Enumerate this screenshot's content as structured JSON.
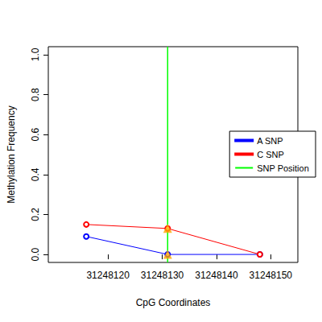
{
  "chart_data": {
    "type": "line",
    "x_label": "CpG Coordinates",
    "y_label": "Methylation Frequency",
    "x": [
      31248116,
      31248131,
      31248148
    ],
    "series": [
      {
        "name": "A SNP",
        "color": "#0000FF",
        "values": [
          0.09,
          0.0,
          0.0
        ],
        "marker": "circle"
      },
      {
        "name": "C SNP",
        "color": "#FF0000",
        "values": [
          0.15,
          0.13,
          0.0
        ],
        "marker": "circle"
      }
    ],
    "snp_position": {
      "name": "SNP Position",
      "color": "#00FF00",
      "x": 31248131
    },
    "xlim": [
      31248109,
      31248155
    ],
    "xticks": [
      31248120,
      31248130,
      31248140,
      31248150
    ],
    "ylim": [
      -0.04,
      1.04
    ],
    "yticks": [
      {
        "value": 0,
        "label": "0.0"
      },
      {
        "value": 0.2,
        "label": "0.2"
      },
      {
        "value": 0.4,
        "label": "0.4"
      },
      {
        "value": 0.6,
        "label": "0.6"
      },
      {
        "value": 0.8,
        "label": "0.8"
      },
      {
        "value": 1,
        "label": "1.0"
      }
    ],
    "legend": "right",
    "grid": false
  }
}
